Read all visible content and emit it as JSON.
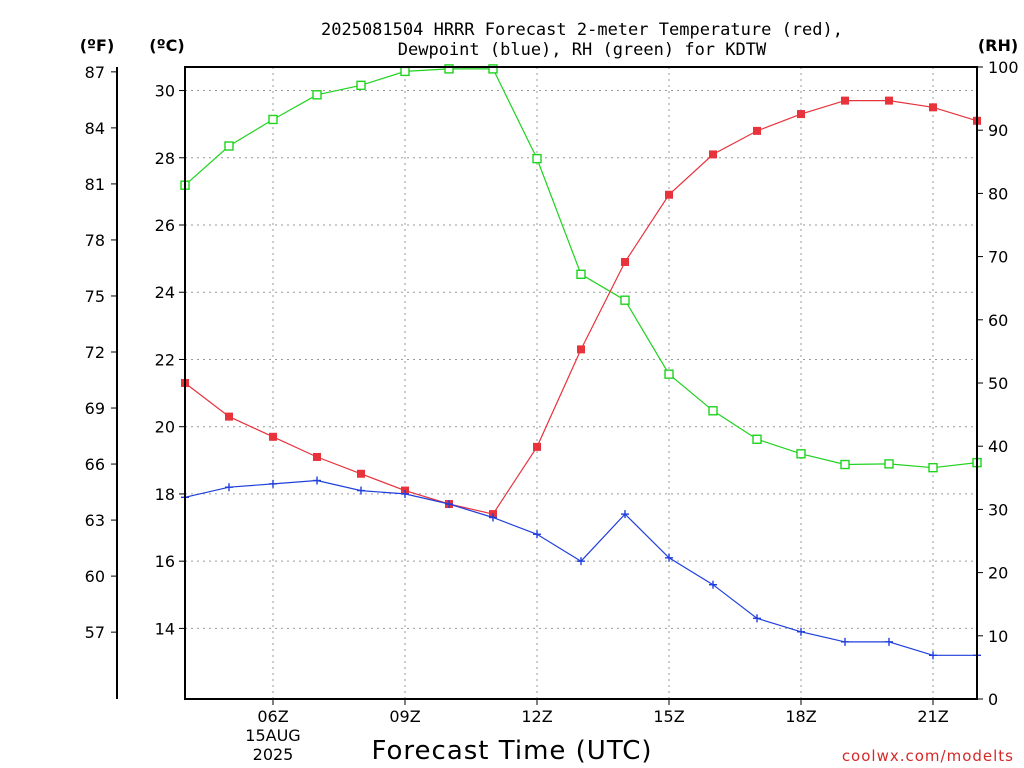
{
  "chart_data": {
    "type": "line",
    "title_line1": "2025081504 HRRR Forecast 2-meter Temperature (red),",
    "title_line2": "Dewpoint (blue), RH (green) for KDTW",
    "xlabel": "Forecast Time (UTC)",
    "credit": "coolwx.com/modelts",
    "units": {
      "fahrenheit": "(ºF)",
      "celsius": "(ºC)",
      "rh": "(RH)"
    },
    "x_hours": [
      4,
      5,
      6,
      7,
      8,
      9,
      10,
      11,
      12,
      13,
      14,
      15,
      16,
      17,
      18,
      19,
      20,
      21,
      22
    ],
    "xlim_hours": [
      4,
      22
    ],
    "x_ticks": [
      {
        "hour": 6,
        "label": "06Z"
      },
      {
        "hour": 9,
        "label": "09Z"
      },
      {
        "hour": 12,
        "label": "12Z"
      },
      {
        "hour": 15,
        "label": "15Z"
      },
      {
        "hour": 18,
        "label": "18Z"
      },
      {
        "hour": 21,
        "label": "21Z"
      }
    ],
    "date_label": [
      "15AUG",
      "2025"
    ],
    "celsius_ylim": [
      11.9,
      30.7
    ],
    "celsius_ticks": [
      "14",
      "16",
      "18",
      "20",
      "22",
      "24",
      "26",
      "28",
      "30"
    ],
    "fahrenheit_ticks": [
      "57",
      "60",
      "63",
      "66",
      "69",
      "72",
      "75",
      "78",
      "81",
      "84",
      "87"
    ],
    "rh_ylim": [
      0,
      100
    ],
    "rh_ticks": [
      "0",
      "10",
      "20",
      "30",
      "40",
      "50",
      "60",
      "70",
      "80",
      "90",
      "100"
    ],
    "grid": true,
    "series": [
      {
        "name": "Temperature",
        "color": "#e8323c",
        "marker": "filled-square",
        "axis": "celsius",
        "values": [
          21.3,
          20.3,
          19.7,
          19.1,
          18.6,
          18.1,
          17.7,
          17.4,
          19.4,
          22.3,
          24.9,
          26.9,
          28.1,
          28.8,
          29.3,
          29.7,
          29.7,
          29.5,
          29.1
        ]
      },
      {
        "name": "Dewpoint",
        "color": "#1f3fdc",
        "marker": "plus",
        "axis": "celsius",
        "values": [
          17.9,
          18.2,
          18.3,
          18.4,
          18.1,
          18.0,
          17.7,
          17.3,
          16.8,
          16.0,
          17.4,
          16.1,
          15.3,
          14.3,
          13.9,
          13.6,
          13.6,
          13.2,
          13.2
        ]
      },
      {
        "name": "RH",
        "color": "#1fd31f",
        "marker": "open-square",
        "axis": "rh",
        "values": [
          81.3,
          87.5,
          91.7,
          95.6,
          97.1,
          99.3,
          99.7,
          99.7,
          85.5,
          67.2,
          63.1,
          51.4,
          45.6,
          41.1,
          38.8,
          37.1,
          37.2,
          36.6,
          37.4
        ]
      }
    ]
  }
}
